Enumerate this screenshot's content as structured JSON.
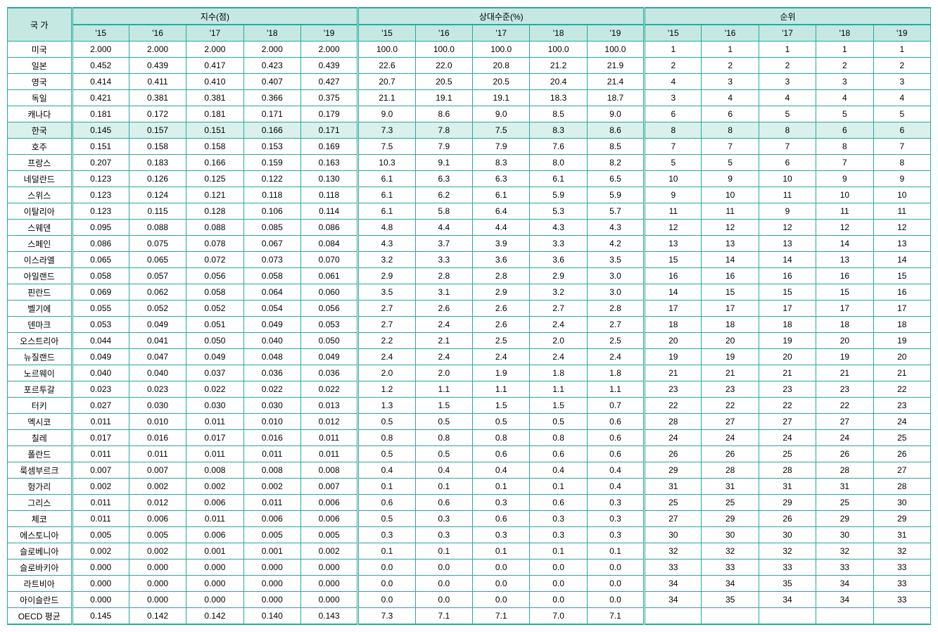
{
  "headers": {
    "country": "국 가",
    "group1": "지수(점)",
    "group2": "상대수준(%)",
    "group3": "순위",
    "years": [
      "'15",
      "'16",
      "'17",
      "'18",
      "'19"
    ]
  },
  "highlight_row_index": 5,
  "colors": {
    "border": "#2aa89a",
    "header_bg": "#c5e8e3",
    "highlight_bg": "#d9f0ec",
    "background": "#ffffff",
    "text": "#000000"
  },
  "rows": [
    {
      "c": "미국",
      "i": [
        "2.000",
        "2.000",
        "2.000",
        "2.000",
        "2.000"
      ],
      "r": [
        "100.0",
        "100.0",
        "100.0",
        "100.0",
        "100.0"
      ],
      "k": [
        "1",
        "1",
        "1",
        "1",
        "1"
      ]
    },
    {
      "c": "일본",
      "i": [
        "0.452",
        "0.439",
        "0.417",
        "0.423",
        "0.439"
      ],
      "r": [
        "22.6",
        "22.0",
        "20.8",
        "21.2",
        "21.9"
      ],
      "k": [
        "2",
        "2",
        "2",
        "2",
        "2"
      ]
    },
    {
      "c": "영국",
      "i": [
        "0.414",
        "0.411",
        "0.410",
        "0.407",
        "0.427"
      ],
      "r": [
        "20.7",
        "20.5",
        "20.5",
        "20.4",
        "21.4"
      ],
      "k": [
        "4",
        "3",
        "3",
        "3",
        "3"
      ]
    },
    {
      "c": "독일",
      "i": [
        "0.421",
        "0.381",
        "0.381",
        "0.366",
        "0.375"
      ],
      "r": [
        "21.1",
        "19.1",
        "19.1",
        "18.3",
        "18.7"
      ],
      "k": [
        "3",
        "4",
        "4",
        "4",
        "4"
      ]
    },
    {
      "c": "캐나다",
      "i": [
        "0.181",
        "0.172",
        "0.181",
        "0.171",
        "0.179"
      ],
      "r": [
        "9.0",
        "8.6",
        "9.0",
        "8.5",
        "9.0"
      ],
      "k": [
        "6",
        "6",
        "5",
        "5",
        "5"
      ]
    },
    {
      "c": "한국",
      "i": [
        "0.145",
        "0.157",
        "0.151",
        "0.166",
        "0.171"
      ],
      "r": [
        "7.3",
        "7.8",
        "7.5",
        "8.3",
        "8.6"
      ],
      "k": [
        "8",
        "8",
        "8",
        "6",
        "6"
      ]
    },
    {
      "c": "호주",
      "i": [
        "0.151",
        "0.158",
        "0.158",
        "0.153",
        "0.169"
      ],
      "r": [
        "7.5",
        "7.9",
        "7.9",
        "7.6",
        "8.5"
      ],
      "k": [
        "7",
        "7",
        "7",
        "8",
        "7"
      ]
    },
    {
      "c": "프랑스",
      "i": [
        "0.207",
        "0.183",
        "0.166",
        "0.159",
        "0.163"
      ],
      "r": [
        "10.3",
        "9.1",
        "8.3",
        "8.0",
        "8.2"
      ],
      "k": [
        "5",
        "5",
        "6",
        "7",
        "8"
      ]
    },
    {
      "c": "네덜란드",
      "i": [
        "0.123",
        "0.126",
        "0.125",
        "0.122",
        "0.130"
      ],
      "r": [
        "6.1",
        "6.3",
        "6.3",
        "6.1",
        "6.5"
      ],
      "k": [
        "10",
        "9",
        "10",
        "9",
        "9"
      ]
    },
    {
      "c": "스위스",
      "i": [
        "0.123",
        "0.124",
        "0.121",
        "0.118",
        "0.118"
      ],
      "r": [
        "6.1",
        "6.2",
        "6.1",
        "5.9",
        "5.9"
      ],
      "k": [
        "9",
        "10",
        "11",
        "10",
        "10"
      ]
    },
    {
      "c": "이탈리아",
      "i": [
        "0.123",
        "0.115",
        "0.128",
        "0.106",
        "0.114"
      ],
      "r": [
        "6.1",
        "5.8",
        "6.4",
        "5.3",
        "5.7"
      ],
      "k": [
        "11",
        "11",
        "9",
        "11",
        "11"
      ]
    },
    {
      "c": "스웨덴",
      "i": [
        "0.095",
        "0.088",
        "0.088",
        "0.085",
        "0.086"
      ],
      "r": [
        "4.8",
        "4.4",
        "4.4",
        "4.3",
        "4.3"
      ],
      "k": [
        "12",
        "12",
        "12",
        "12",
        "12"
      ]
    },
    {
      "c": "스페인",
      "i": [
        "0.086",
        "0.075",
        "0.078",
        "0.067",
        "0.084"
      ],
      "r": [
        "4.3",
        "3.7",
        "3.9",
        "3.3",
        "4.2"
      ],
      "k": [
        "13",
        "13",
        "13",
        "14",
        "13"
      ]
    },
    {
      "c": "이스라엘",
      "i": [
        "0.065",
        "0.065",
        "0.072",
        "0.073",
        "0.070"
      ],
      "r": [
        "3.2",
        "3.3",
        "3.6",
        "3.6",
        "3.5"
      ],
      "k": [
        "15",
        "14",
        "14",
        "13",
        "14"
      ]
    },
    {
      "c": "아일랜드",
      "i": [
        "0.058",
        "0.057",
        "0.056",
        "0.058",
        "0.061"
      ],
      "r": [
        "2.9",
        "2.8",
        "2.8",
        "2.9",
        "3.0"
      ],
      "k": [
        "16",
        "16",
        "16",
        "16",
        "15"
      ]
    },
    {
      "c": "핀란드",
      "i": [
        "0.069",
        "0.062",
        "0.058",
        "0.064",
        "0.060"
      ],
      "r": [
        "3.5",
        "3.1",
        "2.9",
        "3.2",
        "3.0"
      ],
      "k": [
        "14",
        "15",
        "15",
        "15",
        "16"
      ]
    },
    {
      "c": "벨기에",
      "i": [
        "0.055",
        "0.052",
        "0.052",
        "0.054",
        "0.056"
      ],
      "r": [
        "2.7",
        "2.6",
        "2.6",
        "2.7",
        "2.8"
      ],
      "k": [
        "17",
        "17",
        "17",
        "17",
        "17"
      ]
    },
    {
      "c": "덴마크",
      "i": [
        "0.053",
        "0.049",
        "0.051",
        "0.049",
        "0.053"
      ],
      "r": [
        "2.7",
        "2.4",
        "2.6",
        "2.4",
        "2.7"
      ],
      "k": [
        "18",
        "18",
        "18",
        "18",
        "18"
      ]
    },
    {
      "c": "오스트리아",
      "i": [
        "0.044",
        "0.041",
        "0.050",
        "0.040",
        "0.050"
      ],
      "r": [
        "2.2",
        "2.1",
        "2.5",
        "2.0",
        "2.5"
      ],
      "k": [
        "20",
        "20",
        "19",
        "20",
        "19"
      ]
    },
    {
      "c": "뉴질랜드",
      "i": [
        "0.049",
        "0.047",
        "0.049",
        "0.048",
        "0.049"
      ],
      "r": [
        "2.4",
        "2.4",
        "2.4",
        "2.4",
        "2.4"
      ],
      "k": [
        "19",
        "19",
        "20",
        "19",
        "20"
      ]
    },
    {
      "c": "노르웨이",
      "i": [
        "0.040",
        "0.040",
        "0.037",
        "0.036",
        "0.036"
      ],
      "r": [
        "2.0",
        "2.0",
        "1.9",
        "1.8",
        "1.8"
      ],
      "k": [
        "21",
        "21",
        "21",
        "21",
        "21"
      ]
    },
    {
      "c": "포르투갈",
      "i": [
        "0.023",
        "0.023",
        "0.022",
        "0.022",
        "0.022"
      ],
      "r": [
        "1.2",
        "1.1",
        "1.1",
        "1.1",
        "1.1"
      ],
      "k": [
        "23",
        "23",
        "23",
        "23",
        "22"
      ]
    },
    {
      "c": "터키",
      "i": [
        "0.027",
        "0.030",
        "0.030",
        "0.030",
        "0.013"
      ],
      "r": [
        "1.3",
        "1.5",
        "1.5",
        "1.5",
        "0.7"
      ],
      "k": [
        "22",
        "22",
        "22",
        "22",
        "23"
      ]
    },
    {
      "c": "멕시코",
      "i": [
        "0.011",
        "0.010",
        "0.011",
        "0.010",
        "0.012"
      ],
      "r": [
        "0.5",
        "0.5",
        "0.5",
        "0.5",
        "0.6"
      ],
      "k": [
        "28",
        "27",
        "27",
        "27",
        "24"
      ]
    },
    {
      "c": "칠레",
      "i": [
        "0.017",
        "0.016",
        "0.017",
        "0.016",
        "0.011"
      ],
      "r": [
        "0.8",
        "0.8",
        "0.8",
        "0.8",
        "0.6"
      ],
      "k": [
        "24",
        "24",
        "24",
        "24",
        "25"
      ]
    },
    {
      "c": "폴란드",
      "i": [
        "0.011",
        "0.011",
        "0.011",
        "0.011",
        "0.011"
      ],
      "r": [
        "0.5",
        "0.5",
        "0.6",
        "0.6",
        "0.6"
      ],
      "k": [
        "26",
        "26",
        "25",
        "26",
        "26"
      ]
    },
    {
      "c": "룩셈부르크",
      "i": [
        "0.007",
        "0.007",
        "0.008",
        "0.008",
        "0.008"
      ],
      "r": [
        "0.4",
        "0.4",
        "0.4",
        "0.4",
        "0.4"
      ],
      "k": [
        "29",
        "28",
        "28",
        "28",
        "27"
      ]
    },
    {
      "c": "헝가리",
      "i": [
        "0.002",
        "0.002",
        "0.002",
        "0.002",
        "0.007"
      ],
      "r": [
        "0.1",
        "0.1",
        "0.1",
        "0.1",
        "0.4"
      ],
      "k": [
        "31",
        "31",
        "31",
        "31",
        "28"
      ]
    },
    {
      "c": "그리스",
      "i": [
        "0.011",
        "0.012",
        "0.006",
        "0.011",
        "0.006"
      ],
      "r": [
        "0.6",
        "0.6",
        "0.3",
        "0.6",
        "0.3"
      ],
      "k": [
        "25",
        "25",
        "29",
        "25",
        "30"
      ]
    },
    {
      "c": "체코",
      "i": [
        "0.011",
        "0.006",
        "0.011",
        "0.006",
        "0.006"
      ],
      "r": [
        "0.5",
        "0.3",
        "0.6",
        "0.3",
        "0.3"
      ],
      "k": [
        "27",
        "29",
        "26",
        "29",
        "29"
      ]
    },
    {
      "c": "에스토니아",
      "i": [
        "0.005",
        "0.005",
        "0.006",
        "0.005",
        "0.005"
      ],
      "r": [
        "0.3",
        "0.3",
        "0.3",
        "0.3",
        "0.3"
      ],
      "k": [
        "30",
        "30",
        "30",
        "30",
        "31"
      ]
    },
    {
      "c": "슬로베니아",
      "i": [
        "0.002",
        "0.002",
        "0.001",
        "0.001",
        "0.002"
      ],
      "r": [
        "0.1",
        "0.1",
        "0.1",
        "0.1",
        "0.1"
      ],
      "k": [
        "32",
        "32",
        "32",
        "32",
        "32"
      ]
    },
    {
      "c": "슬로바키아",
      "i": [
        "0.000",
        "0.000",
        "0.000",
        "0.000",
        "0.000"
      ],
      "r": [
        "0.0",
        "0.0",
        "0.0",
        "0.0",
        "0.0"
      ],
      "k": [
        "33",
        "33",
        "33",
        "33",
        "33"
      ]
    },
    {
      "c": "라트비아",
      "i": [
        "0.000",
        "0.000",
        "0.000",
        "0.000",
        "0.000"
      ],
      "r": [
        "0.0",
        "0.0",
        "0.0",
        "0.0",
        "0.0"
      ],
      "k": [
        "34",
        "34",
        "35",
        "34",
        "33"
      ]
    },
    {
      "c": "아이슬란드",
      "i": [
        "0.000",
        "0.000",
        "0.000",
        "0.000",
        "0.000"
      ],
      "r": [
        "0.0",
        "0.0",
        "0.0",
        "0.0",
        "0.0"
      ],
      "k": [
        "34",
        "35",
        "34",
        "34",
        "33"
      ]
    },
    {
      "c": "OECD 평균",
      "i": [
        "0.145",
        "0.142",
        "0.142",
        "0.140",
        "0.143"
      ],
      "r": [
        "7.3",
        "7.1",
        "7.1",
        "7.0",
        "7.1"
      ],
      "k": [
        "",
        "",
        "",
        "",
        ""
      ]
    }
  ]
}
